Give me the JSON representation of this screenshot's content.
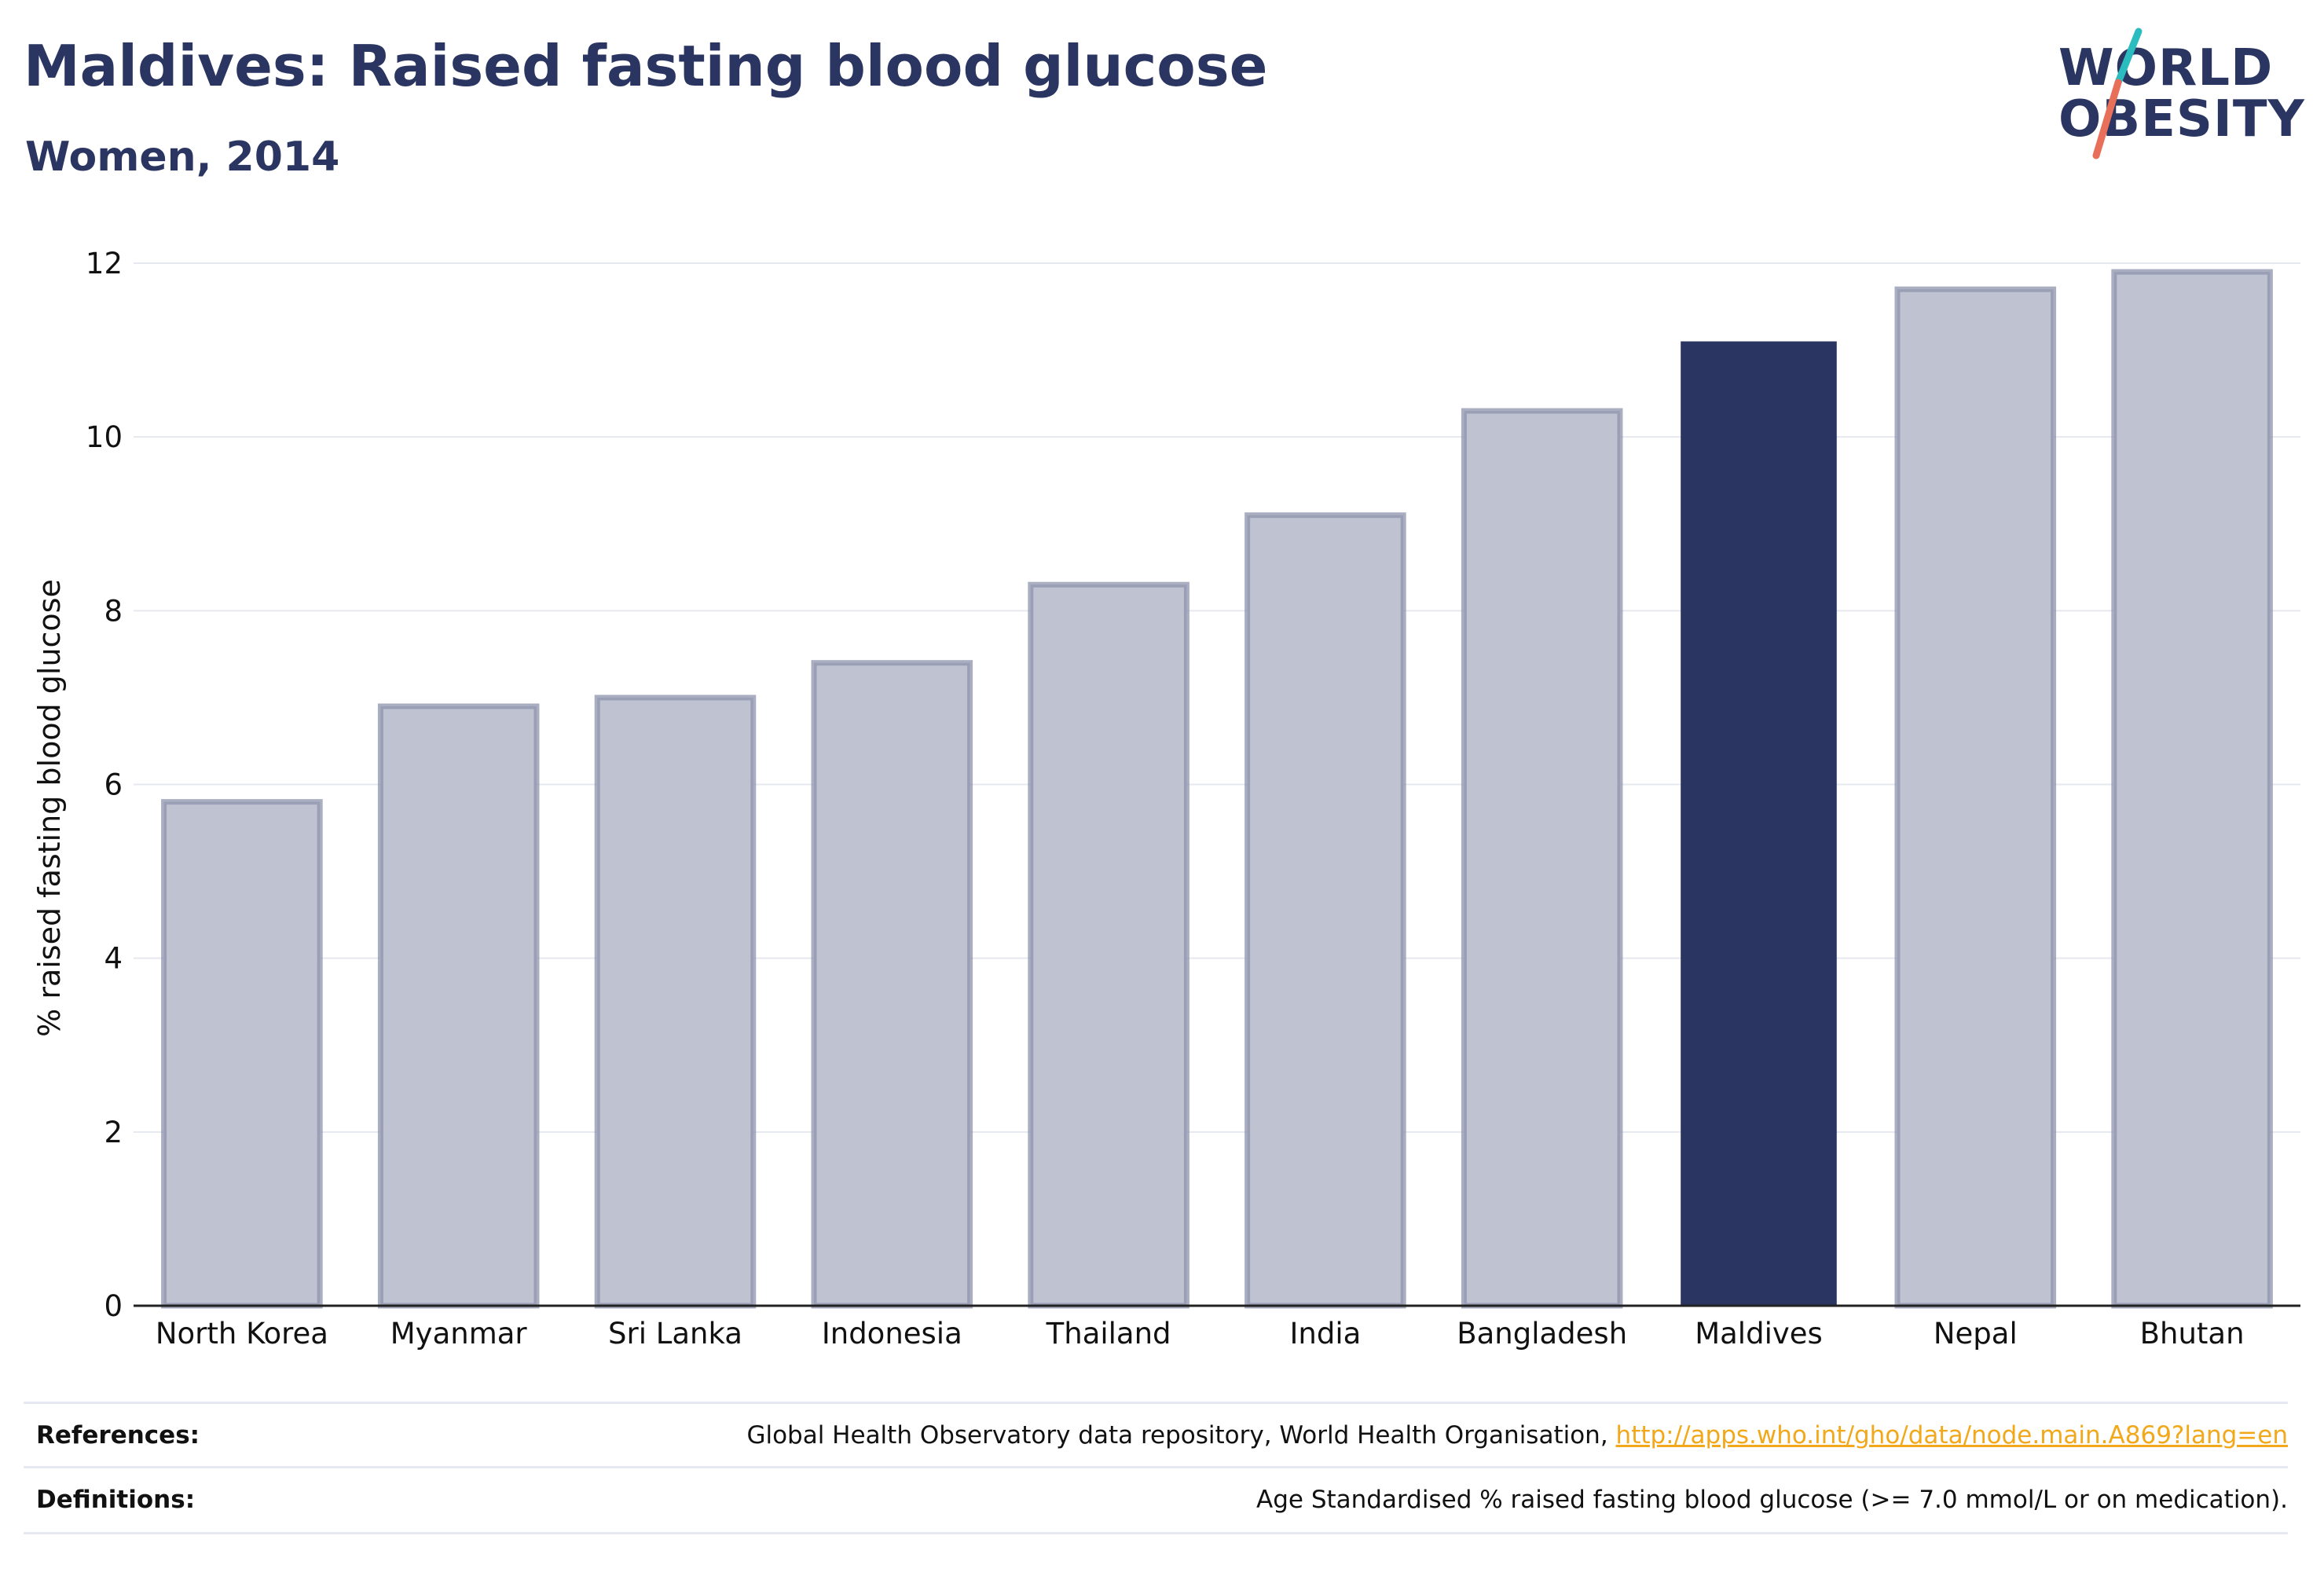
{
  "header": {
    "title": "Maldives: Raised fasting blood glucose",
    "subtitle": "Women, 2014"
  },
  "logo": {
    "line1": "WORLD",
    "line2": "OBESITY",
    "slash_colors": [
      "#2bbcc0",
      "#e8705a"
    ]
  },
  "colors": {
    "highlight": "#2a3561",
    "bar_fill": "#bfc2d0",
    "bar_stroke": "#8d93ac",
    "grid": "#e6e8ef"
  },
  "chart_data": {
    "type": "bar",
    "categories": [
      "North Korea",
      "Myanmar",
      "Sri Lanka",
      "Indonesia",
      "Thailand",
      "India",
      "Bangladesh",
      "Maldives",
      "Nepal",
      "Bhutan"
    ],
    "values": [
      5.8,
      6.9,
      7.0,
      7.4,
      8.3,
      9.1,
      10.3,
      11.1,
      11.7,
      11.9
    ],
    "highlight": "Maldives",
    "xlabel": "",
    "ylabel": "% raised fasting blood glucose",
    "ylim": [
      0,
      12
    ],
    "yticks": [
      0,
      2,
      4,
      6,
      8,
      10,
      12
    ],
    "grid": true
  },
  "footer": {
    "references_label": "References:",
    "references_text": "Global Health Observatory data repository, World Health Organisation, ",
    "references_link": "http://apps.who.int/gho/data/node.main.A869?lang=en",
    "definitions_label": "Definitions:",
    "definitions_text": "Age Standardised % raised fasting blood glucose (>= 7.0 mmol/L or on medication)."
  }
}
